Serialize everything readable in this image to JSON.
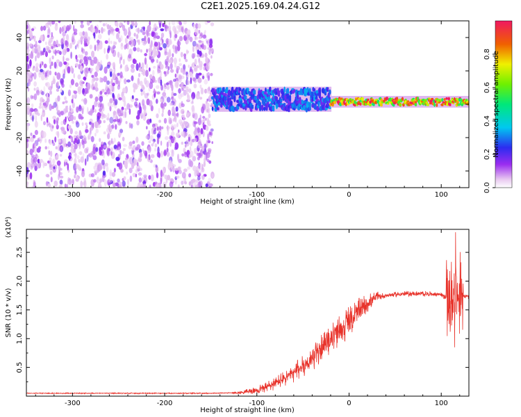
{
  "page_title": "C2E1.2025.169.04.24.G12",
  "chart_data": [
    {
      "type": "heatmap",
      "title": "C2E1.2025.169.04.24.G12",
      "xlabel": "Height of straight line (km)",
      "ylabel": "Frequency (Hz)",
      "xlim": [
        -350,
        130
      ],
      "ylim": [
        -50,
        50
      ],
      "x_ticks": [
        -300,
        -200,
        -100,
        0,
        100
      ],
      "y_ticks": [
        -40,
        -20,
        0,
        20,
        40
      ],
      "colorbar": {
        "label": "Normalized spectral amplitude",
        "range": [
          0,
          1
        ],
        "ticks": [
          "0.0",
          "0.2",
          "0.4",
          "0.6",
          "0.8"
        ],
        "tick_values": [
          0.0,
          0.2,
          0.4,
          0.6,
          0.8
        ]
      },
      "regions": [
        {
          "x_range": [
            -350,
            -148
          ],
          "description": "scattered noise",
          "frequency_range": [
            -50,
            50
          ],
          "amplitude": 0.15
        },
        {
          "x_range": [
            -148,
            -20
          ],
          "center_frequency": 3,
          "bandwidth": 12,
          "amplitude": 0.3
        },
        {
          "x_range": [
            -20,
            130
          ],
          "center_frequency": 1.5,
          "bandwidth": 4,
          "amplitude": 0.9
        }
      ]
    },
    {
      "type": "line",
      "xlabel": "Height of straight line (km)",
      "ylabel": "SNR (10 * v/v)",
      "y_scale_label": "(x10⁴)",
      "xlim": [
        -350,
        130
      ],
      "ylim": [
        0,
        2.9
      ],
      "x_ticks": [
        -300,
        -200,
        -100,
        0,
        100
      ],
      "y_ticks": [
        0.5,
        1.0,
        1.5,
        2.0,
        2.5
      ],
      "color": "#e8322a",
      "series": [
        {
          "x": [
            -350,
            -300,
            -250,
            -200,
            -150,
            -120,
            -100,
            -80,
            -60,
            -40,
            -20,
            -10,
            0,
            10,
            20,
            30,
            40,
            60,
            80,
            100,
            110,
            115,
            120,
            125,
            130
          ],
          "y": [
            0.05,
            0.05,
            0.05,
            0.05,
            0.05,
            0.06,
            0.1,
            0.22,
            0.4,
            0.65,
            1.0,
            1.15,
            1.3,
            1.45,
            1.62,
            1.72,
            1.75,
            1.78,
            1.78,
            1.77,
            1.65,
            1.75,
            1.8,
            1.75,
            1.73
          ]
        }
      ]
    }
  ]
}
